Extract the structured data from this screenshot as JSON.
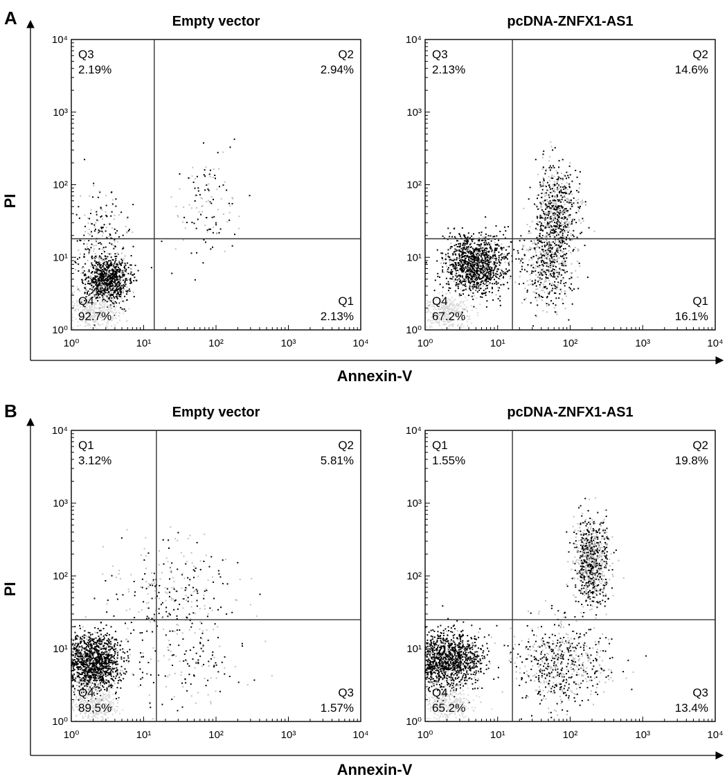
{
  "figure": {
    "xlabel": "Annexin-V",
    "ylabel": "PI"
  },
  "colors": {
    "axis": "#000000",
    "dense_dots": "#000000",
    "light_dots": "#bdbdbd",
    "quadrant_lines": "#333333"
  },
  "chart_data": [
    {
      "type": "scatter",
      "panel_letter": "A",
      "title": "Empty vector",
      "xlabel": "Annexin-V",
      "ylabel": "PI",
      "scale": "log",
      "xlim": [
        1,
        10000
      ],
      "ylim": [
        1,
        10000
      ],
      "x_ticks": [
        "10⁰",
        "10¹",
        "10²",
        "10³",
        "10⁴"
      ],
      "y_ticks": [
        "10⁰",
        "10¹",
        "10²",
        "10³",
        "10⁴"
      ],
      "gate": {
        "x": 14,
        "y": 18
      },
      "quadrants": [
        {
          "name": "Q3",
          "percent": "2.19%",
          "position": "top-left"
        },
        {
          "name": "Q2",
          "percent": "2.94%",
          "position": "top-right"
        },
        {
          "name": "Q4",
          "percent": "92.7%",
          "position": "bottom-left"
        },
        {
          "name": "Q1",
          "percent": "2.13%",
          "position": "bottom-right"
        }
      ]
    },
    {
      "type": "scatter",
      "panel_letter": "",
      "title": "pcDNA-ZNFX1-AS1",
      "xlabel": "Annexin-V",
      "ylabel": "PI",
      "scale": "log",
      "xlim": [
        1,
        10000
      ],
      "ylim": [
        1,
        10000
      ],
      "x_ticks": [
        "10⁰",
        "10¹",
        "10²",
        "10³",
        "10⁴"
      ],
      "y_ticks": [
        "10⁰",
        "10¹",
        "10²",
        "10³",
        "10⁴"
      ],
      "gate": {
        "x": 16,
        "y": 18
      },
      "quadrants": [
        {
          "name": "Q3",
          "percent": "2.13%",
          "position": "top-left"
        },
        {
          "name": "Q2",
          "percent": "14.6%",
          "position": "top-right"
        },
        {
          "name": "Q4",
          "percent": "67.2%",
          "position": "bottom-left"
        },
        {
          "name": "Q1",
          "percent": "16.1%",
          "position": "bottom-right"
        }
      ]
    },
    {
      "type": "scatter",
      "panel_letter": "B",
      "title": "Empty vector",
      "xlabel": "Annexin-V",
      "ylabel": "PI",
      "scale": "log",
      "xlim": [
        1,
        10000
      ],
      "ylim": [
        1,
        10000
      ],
      "x_ticks": [
        "10⁰",
        "10¹",
        "10²",
        "10³",
        "10⁴"
      ],
      "y_ticks": [
        "10⁰",
        "10¹",
        "10²",
        "10³",
        "10⁴"
      ],
      "gate": {
        "x": 15,
        "y": 25
      },
      "quadrants": [
        {
          "name": "Q1",
          "percent": "3.12%",
          "position": "top-left"
        },
        {
          "name": "Q2",
          "percent": "5.81%",
          "position": "top-right"
        },
        {
          "name": "Q4",
          "percent": "89.5%",
          "position": "bottom-left"
        },
        {
          "name": "Q3",
          "percent": "1.57%",
          "position": "bottom-right"
        }
      ]
    },
    {
      "type": "scatter",
      "panel_letter": "",
      "title": "pcDNA-ZNFX1-AS1",
      "xlabel": "Annexin-V",
      "ylabel": "PI",
      "scale": "log",
      "xlim": [
        1,
        10000
      ],
      "ylim": [
        1,
        10000
      ],
      "x_ticks": [
        "10⁰",
        "10¹",
        "10²",
        "10³",
        "10⁴"
      ],
      "y_ticks": [
        "10⁰",
        "10¹",
        "10²",
        "10³",
        "10⁴"
      ],
      "gate": {
        "x": 16,
        "y": 25
      },
      "quadrants": [
        {
          "name": "Q1",
          "percent": "1.55%",
          "position": "top-left"
        },
        {
          "name": "Q2",
          "percent": "19.8%",
          "position": "top-right"
        },
        {
          "name": "Q4",
          "percent": "65.2%",
          "position": "bottom-left"
        },
        {
          "name": "Q3",
          "percent": "13.4%",
          "position": "bottom-right"
        }
      ]
    }
  ]
}
